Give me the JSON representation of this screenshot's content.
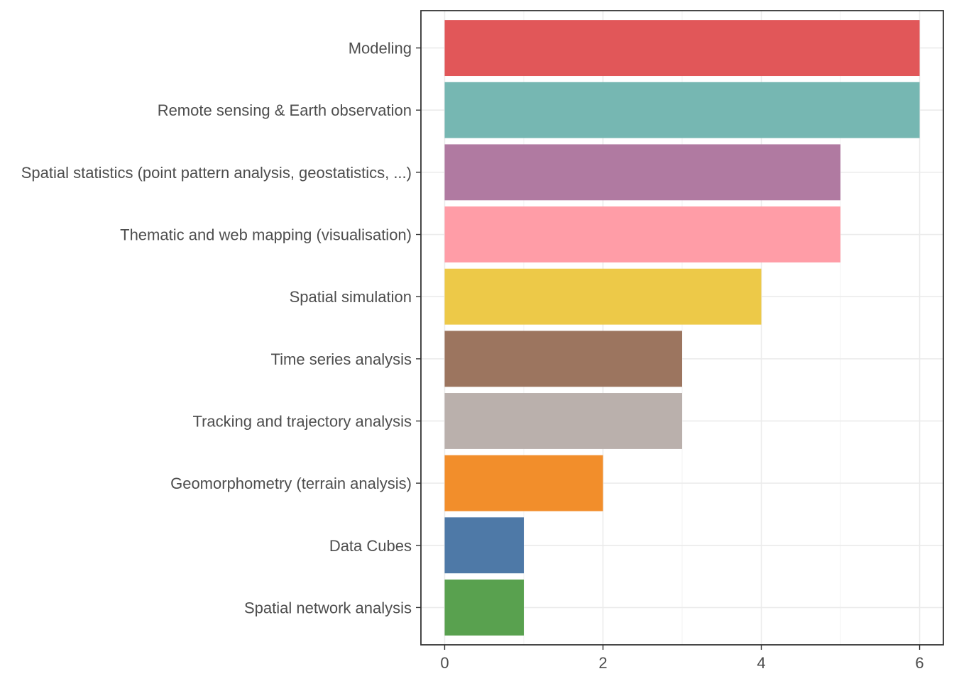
{
  "chart_data": {
    "type": "bar",
    "orientation": "horizontal",
    "title": "",
    "xlabel": "",
    "ylabel": "",
    "categories": [
      "Modeling",
      "Remote sensing & Earth observation",
      "Spatial statistics (point pattern analysis, geostatistics, ...)",
      "Thematic and web mapping (visualisation)",
      "Spatial simulation",
      "Time series analysis",
      "Tracking and trajectory analysis",
      "Geomorphometry (terrain analysis)",
      "Data Cubes",
      "Spatial network analysis"
    ],
    "values": [
      6,
      6,
      5,
      5,
      4,
      3,
      3,
      2,
      1,
      1
    ],
    "colors": [
      "#e15759",
      "#76b7b2",
      "#b07aa1",
      "#ff9da7",
      "#edc948",
      "#9c755f",
      "#bab0ac",
      "#f28e2b",
      "#4e79a7",
      "#59a14f"
    ],
    "xlim": [
      -0.3,
      6.3
    ],
    "xticks": [
      "0",
      "2",
      "4",
      "6"
    ],
    "grid": true,
    "legend": "none"
  }
}
